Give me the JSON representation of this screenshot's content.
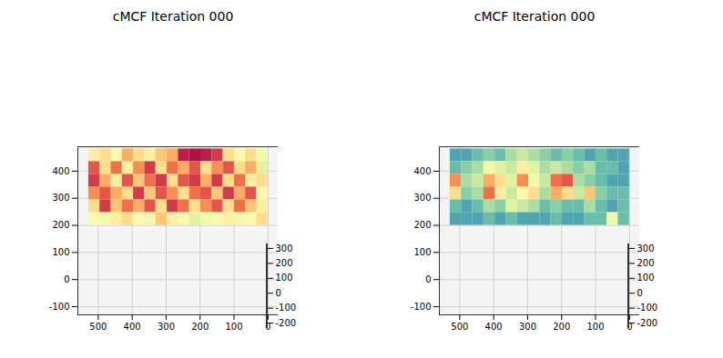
{
  "chart_data": [
    {
      "type": "scatter3d",
      "title": "cMCF Iteration 000",
      "xlim": [
        560,
        -30
      ],
      "xticks": [
        500,
        400,
        300,
        200,
        100,
        0
      ],
      "ylim": [
        -230,
        330
      ],
      "yticks": [
        300,
        200,
        100,
        0,
        -100,
        -200
      ],
      "zlim": [
        -130,
        490
      ],
      "zticks": [
        400,
        300,
        200,
        100,
        0,
        -100
      ],
      "grid": true,
      "clim": [
        0,
        1
      ],
      "cell_x": [
        528,
        495,
        462,
        429,
        396,
        363,
        330,
        297,
        264,
        231,
        198,
        165,
        132,
        99,
        66,
        33,
        0
      ],
      "cell_z": [
        482,
        435,
        388,
        341,
        294,
        247,
        200
      ],
      "cells": [
        [
          0.55,
          0.6,
          0.5,
          0.7,
          0.6,
          0.55,
          0.65,
          0.7,
          0.95,
          0.97,
          0.95,
          0.9,
          0.6,
          0.5,
          0.6,
          0.45
        ],
        [
          0.85,
          0.6,
          0.8,
          0.55,
          0.75,
          0.9,
          0.6,
          0.8,
          0.7,
          0.85,
          0.6,
          0.75,
          0.85,
          0.6,
          0.7,
          0.4
        ],
        [
          0.9,
          0.7,
          0.55,
          0.85,
          0.65,
          0.8,
          0.9,
          0.6,
          0.85,
          0.9,
          0.7,
          0.9,
          0.6,
          0.8,
          0.55,
          0.6
        ],
        [
          0.75,
          0.85,
          0.7,
          0.6,
          0.9,
          0.65,
          0.85,
          0.75,
          0.6,
          0.8,
          0.85,
          0.65,
          0.9,
          0.7,
          0.85,
          0.5
        ],
        [
          0.6,
          0.9,
          0.65,
          0.8,
          0.7,
          0.85,
          0.6,
          0.9,
          0.8,
          0.6,
          0.75,
          0.85,
          0.6,
          0.8,
          0.65,
          0.55
        ],
        [
          0.5,
          0.45,
          0.55,
          0.6,
          0.5,
          0.45,
          0.65,
          0.55,
          0.5,
          0.4,
          0.45,
          0.5,
          0.55,
          0.45,
          0.5,
          0.6
        ]
      ]
    },
    {
      "type": "scatter3d",
      "title": "cMCF Iteration 000",
      "xlim": [
        560,
        -30
      ],
      "xticks": [
        500,
        400,
        300,
        200,
        100,
        0
      ],
      "ylim": [
        -230,
        330
      ],
      "yticks": [
        300,
        200,
        100,
        0,
        -100,
        -200
      ],
      "zlim": [
        -130,
        490
      ],
      "zticks": [
        400,
        300,
        200,
        100,
        0,
        -100
      ],
      "grid": true,
      "clim": [
        0,
        1
      ],
      "cell_x": [
        528,
        495,
        462,
        429,
        396,
        363,
        330,
        297,
        264,
        231,
        198,
        165,
        132,
        99,
        66,
        33,
        0
      ],
      "cell_z": [
        482,
        435,
        388,
        341,
        294,
        247,
        200
      ],
      "cells": [
        [
          0.15,
          0.15,
          0.2,
          0.25,
          0.2,
          0.3,
          0.35,
          0.3,
          0.25,
          0.2,
          0.25,
          0.2,
          0.15,
          0.2,
          0.15,
          0.15
        ],
        [
          0.2,
          0.25,
          0.3,
          0.45,
          0.4,
          0.35,
          0.55,
          0.4,
          0.3,
          0.35,
          0.3,
          0.25,
          0.3,
          0.2,
          0.2,
          0.15
        ],
        [
          0.75,
          0.3,
          0.35,
          0.7,
          0.6,
          0.4,
          0.75,
          0.45,
          0.35,
          0.8,
          0.85,
          0.3,
          0.25,
          0.2,
          0.15,
          0.15
        ],
        [
          0.6,
          0.25,
          0.3,
          0.8,
          0.55,
          0.35,
          0.5,
          0.6,
          0.3,
          0.7,
          0.6,
          0.35,
          0.65,
          0.25,
          0.2,
          0.2
        ],
        [
          0.2,
          0.15,
          0.2,
          0.3,
          0.25,
          0.4,
          0.35,
          0.3,
          0.2,
          0.25,
          0.2,
          0.2,
          0.3,
          0.2,
          0.15,
          0.2
        ],
        [
          0.15,
          0.15,
          0.15,
          0.2,
          0.15,
          0.2,
          0.15,
          0.15,
          0.15,
          0.2,
          0.15,
          0.15,
          0.2,
          0.2,
          0.45,
          0.2
        ]
      ]
    }
  ]
}
